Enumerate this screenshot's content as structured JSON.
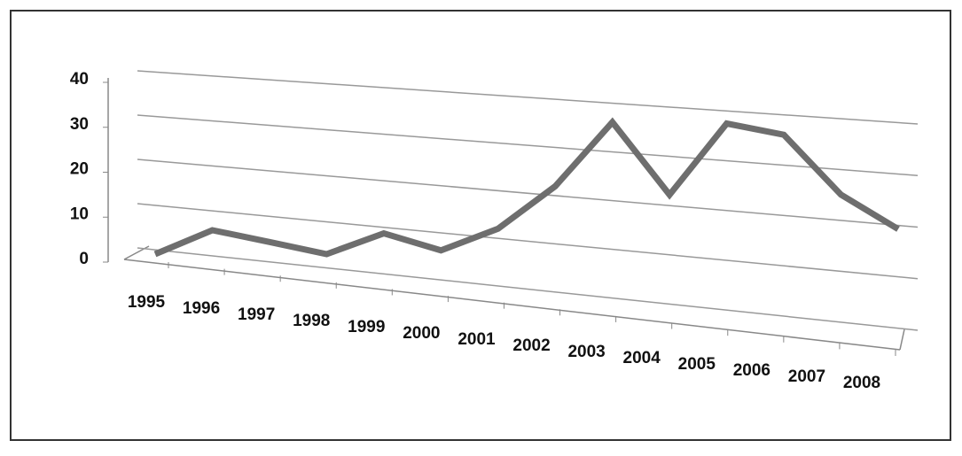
{
  "chart_data": {
    "type": "line",
    "categories": [
      "1995",
      "1996",
      "1997",
      "1998",
      "1999",
      "2000",
      "2001",
      "2002",
      "2003",
      "2004",
      "2005",
      "2006",
      "2007",
      "2008"
    ],
    "values": [
      0,
      6,
      4,
      2,
      7,
      4,
      9,
      18,
      31,
      17,
      31,
      29,
      18,
      12
    ],
    "color": "#6e6e6e",
    "ylim": [
      0,
      40
    ],
    "yticks": [
      0,
      10,
      20,
      30,
      40
    ],
    "grid": true
  }
}
